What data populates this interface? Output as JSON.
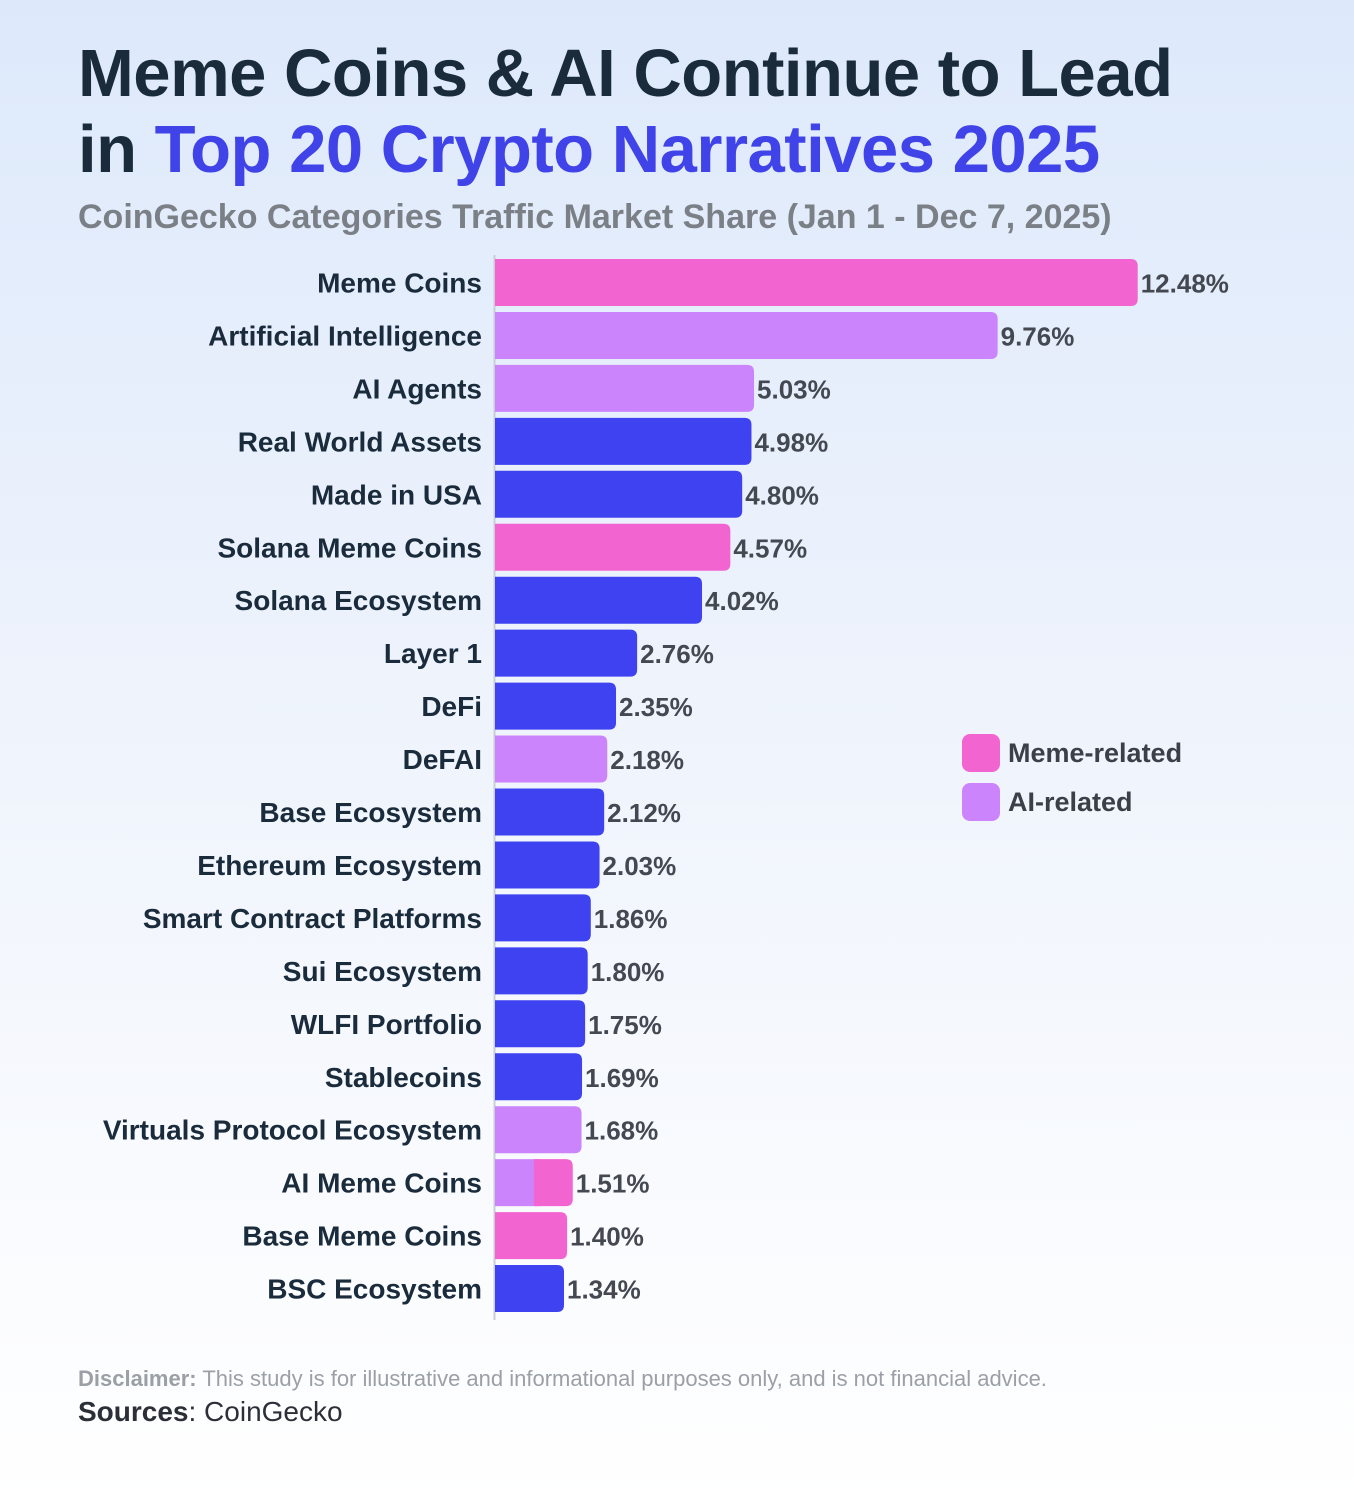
{
  "title": {
    "line1": "Meme Coins & AI Continue to Lead",
    "line2_prefix": "in ",
    "line2_highlight": "Top 20 Crypto Narratives 2025"
  },
  "subtitle": "CoinGecko Categories Traffic Market Share (Jan 1 - Dec 7, 2025)",
  "colors": {
    "meme": "#f265d1",
    "ai": "#cc84fc",
    "other": "#3e42f0",
    "label": "#1a2b3c",
    "value": "#444851",
    "axis": "#c9cdd6"
  },
  "chart_data": {
    "type": "bar",
    "orientation": "horizontal",
    "unit": "%",
    "categories": [
      "Meme Coins",
      "Artificial Intelligence",
      "AI Agents",
      "Real World Assets",
      "Made in USA",
      "Solana Meme Coins",
      "Solana Ecosystem",
      "Layer 1",
      "DeFi",
      "DeFAI",
      "Base Ecosystem",
      "Ethereum Ecosystem",
      "Smart Contract Platforms",
      "Sui Ecosystem",
      "WLFI Portfolio",
      "Stablecoins",
      "Virtuals Protocol Ecosystem",
      "AI Meme Coins",
      "Base Meme Coins",
      "BSC Ecosystem"
    ],
    "values": [
      12.48,
      9.76,
      5.03,
      4.98,
      4.8,
      4.57,
      4.02,
      2.76,
      2.35,
      2.18,
      2.12,
      2.03,
      1.86,
      1.8,
      1.75,
      1.69,
      1.68,
      1.51,
      1.4,
      1.34
    ],
    "value_labels": [
      "12.48%",
      "9.76%",
      "5.03%",
      "4.98%",
      "4.80%",
      "4.57%",
      "4.02%",
      "2.76%",
      "2.35%",
      "2.18%",
      "2.12%",
      "2.03%",
      "1.86%",
      "1.80%",
      "1.75%",
      "1.69%",
      "1.68%",
      "1.51%",
      "1.40%",
      "1.34%"
    ],
    "groups": [
      "meme",
      "ai",
      "ai",
      "other",
      "other",
      "meme",
      "other",
      "other",
      "other",
      "ai",
      "other",
      "other",
      "other",
      "other",
      "other",
      "other",
      "ai",
      "ai+meme",
      "meme",
      "other"
    ],
    "legend": [
      {
        "key": "meme",
        "label": "Meme-related"
      },
      {
        "key": "ai",
        "label": "AI-related"
      }
    ],
    "legend_position": "right",
    "grid": false
  },
  "footer": {
    "disclaimer_label": "Disclaimer:",
    "disclaimer_text": " This study is for illustrative and informational purposes only, and is not financial advice.",
    "sources_label": "Sources",
    "sources_text": ": CoinGecko"
  }
}
